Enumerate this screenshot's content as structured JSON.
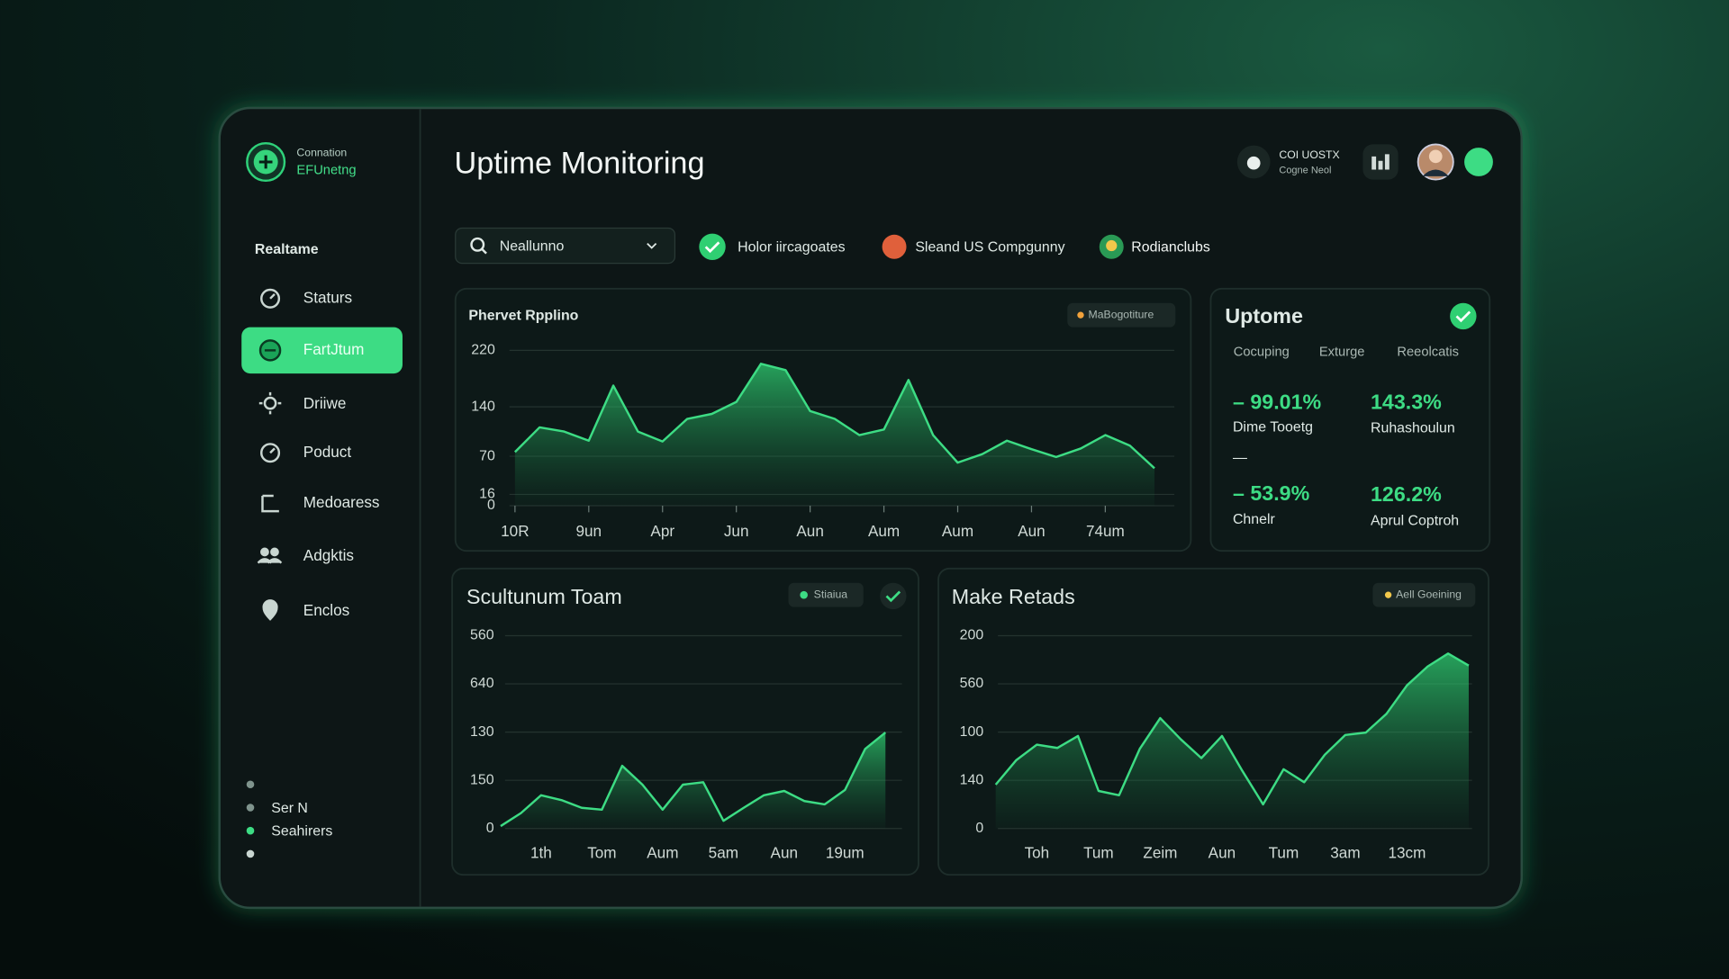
{
  "sidebar": {
    "brand": [
      "Connation",
      "EFUnetng"
    ],
    "section": "Realtame",
    "nav": [
      "Staturs",
      "FartJtum",
      "Driiwe",
      "Poduct",
      "Medoaress",
      "Adgktis",
      "Enclos"
    ],
    "footer": [
      "Ser N",
      "Seahirers"
    ]
  },
  "header": {
    "title": "Uptime Monitoring",
    "account": [
      "COI UOSTX",
      "Cogne Neol"
    ]
  },
  "filters": {
    "search": "Neallunno",
    "chips": [
      "Holor iircagoates",
      "Sleand US Compgunny",
      "Rodianclubs"
    ]
  },
  "uptime": {
    "title": "Uptome",
    "tabs": [
      "Cocuping",
      "Exturge",
      "Reeolcatis"
    ],
    "separator": "—",
    "stats": [
      {
        "value": "– 99.01%",
        "label": "Dime Tooetg"
      },
      {
        "value": "143.3%",
        "label": "Ruhashoulun"
      },
      {
        "value": "– 53.9%",
        "label": "Chnelr"
      },
      {
        "value": "126.2%",
        "label": "Aprul Coptroh"
      }
    ]
  },
  "chart_data": [
    {
      "type": "area",
      "title": "Phervet Rpplino",
      "badge": "MaBogotiture",
      "color": "#3ddc84",
      "categories": [
        "10R",
        null,
        null,
        "9un",
        null,
        null,
        "Apr",
        null,
        null,
        "Jun",
        null,
        null,
        "Aun",
        null,
        null,
        "Aum",
        null,
        null,
        "Aum",
        null,
        null,
        "Aun",
        null,
        null,
        "74um",
        null,
        null
      ],
      "values": [
        76,
        111,
        105,
        92,
        170,
        105,
        91,
        123,
        130,
        147,
        201,
        192,
        134,
        123,
        100,
        108,
        178,
        100,
        61,
        73,
        92,
        80,
        69,
        81,
        100,
        85,
        53
      ],
      "ylim": [
        0,
        220
      ],
      "yticks": [
        220,
        140,
        70,
        16,
        0
      ],
      "grid": true
    },
    {
      "type": "area",
      "title": "Scultunum Toam",
      "badge": "Stiaiua",
      "color": "#3ddc84",
      "categories": [
        null,
        null,
        "1th",
        null,
        null,
        "Tom",
        null,
        null,
        "Aum",
        null,
        null,
        "5am",
        null,
        null,
        "Aun",
        null,
        null,
        "19um",
        null,
        null
      ],
      "values": [
        0.05,
        0.32,
        0.69,
        0.59,
        0.43,
        0.39,
        1.3,
        0.91,
        0.39,
        0.91,
        0.96,
        0.16,
        0.43,
        0.69,
        0.78,
        0.57,
        0.5,
        0.8,
        1.65,
        1.99
      ],
      "ylim": [
        0,
        4
      ],
      "y_labels": [
        "0",
        "150",
        "130",
        "640",
        "560"
      ],
      "grid": true
    },
    {
      "type": "area",
      "title": "Make Retads",
      "badge": "Aell Goeining",
      "color": "#3ddc84",
      "categories": [
        null,
        null,
        "Toh",
        null,
        null,
        "Tum",
        null,
        null,
        "Zeim",
        null,
        null,
        "Aun",
        null,
        null,
        "Tum",
        null,
        null,
        "3am",
        null,
        null,
        "13cm",
        null,
        null,
        null
      ],
      "values": [
        0.91,
        1.42,
        1.74,
        1.67,
        1.92,
        0.78,
        0.69,
        1.65,
        2.29,
        1.85,
        1.46,
        1.92,
        1.19,
        0.5,
        1.23,
        0.96,
        1.53,
        1.94,
        1.99,
        2.38,
        2.97,
        3.36,
        3.63,
        3.38
      ],
      "ylim": [
        0,
        4
      ],
      "y_labels": [
        "0",
        "140",
        "100",
        "560",
        "200"
      ],
      "grid": true
    }
  ]
}
